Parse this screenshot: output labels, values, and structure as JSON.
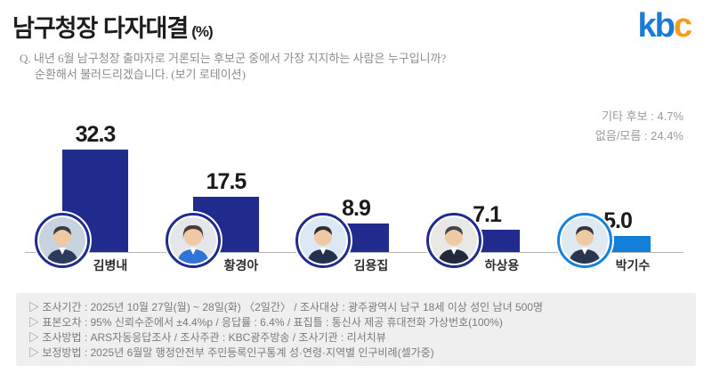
{
  "header": {
    "title": "남구청장 다자대결",
    "title_unit": "(%)",
    "question_line1": "Q. 내년 6월 남구청장 출마자로 거론되는 후보군 중에서 가장 지지하는 사람은 누구입니까?",
    "question_line2": "순환해서 불러드리겠습니다. (보기 로테이션)",
    "logo_k": "k",
    "logo_b": "b",
    "logo_c": "c"
  },
  "side_note": {
    "other_candidates": "기타 후보 : 4.7%",
    "none_dont_know": "없음/모름 : 24.4%"
  },
  "chart_data": {
    "type": "bar",
    "title": "남구청장 다자대결 (%)",
    "categories": [
      "김병내",
      "황경아",
      "김용집",
      "하상용",
      "박기수"
    ],
    "values": [
      32.3,
      17.5,
      8.9,
      7.1,
      5.0
    ],
    "value_labels": [
      "32.3",
      "17.5",
      "8.9",
      "7.1",
      "5.0"
    ],
    "bar_colors": [
      "#202b8d",
      "#202b8d",
      "#202b8d",
      "#202b8d",
      "#127fd9"
    ],
    "ylim": [
      0,
      35
    ],
    "grid": false,
    "legend": "none",
    "annotations": [
      "기타 후보 : 4.7%",
      "없음/모름 : 24.4%"
    ]
  },
  "footnotes": {
    "line1": "▷ 조사기간 : 2025년 10월 27일(월) ~ 28일(화) 〈2일간〉 / 조사대상 : 광주광역시 남구 18세 이상 성인 남녀 500명",
    "line2": "▷ 표본오차 : 95% 신뢰수준에서 ±4.4%p / 응답률 : 6.4% / 표집틀 : 통신사 제공 휴대전화 가상번호(100%)",
    "line3": "▷ 조사방법 : ARS자동응답조사 / 조사주관 : KBC광주방송 / 조사기관 : 리서치뷰",
    "line4": "▷ 보정방법 : 2025년 6월말 행정안전부 주민등록인구통계 성·연령·지역별 인구비례(셀가중)"
  },
  "colors": {
    "bar_navy": "#202b8d",
    "bar_blue": "#127fd9",
    "logo_blue": "#1a7bd4",
    "logo_orange": "#f59d1a",
    "footer_bg": "#efefef"
  }
}
